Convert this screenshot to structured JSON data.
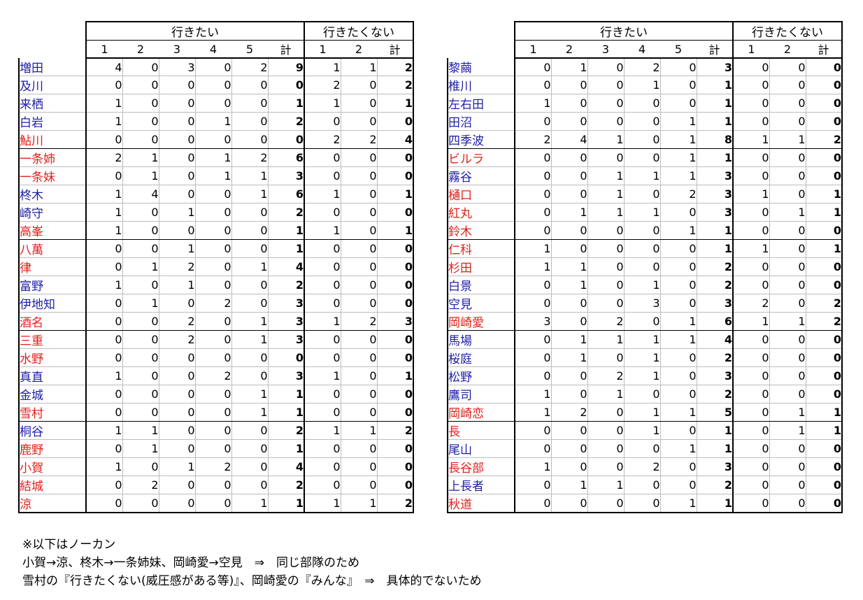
{
  "headers": {
    "want": "行きたい",
    "not_want": "行きたくない",
    "want_cols": [
      "1",
      "2",
      "3",
      "4",
      "5",
      "計"
    ],
    "not_want_cols": [
      "1",
      "2",
      "計"
    ]
  },
  "colors": {
    "red": "#e0201b",
    "blue": "#2020a8"
  },
  "left_table": [
    {
      "name": "増田",
      "color": "blue",
      "want": [
        4,
        0,
        3,
        0,
        2
      ],
      "want_total": 9,
      "not": [
        1,
        1
      ],
      "not_total": 2
    },
    {
      "name": "及川",
      "color": "blue",
      "want": [
        0,
        0,
        0,
        0,
        0
      ],
      "want_total": 0,
      "not": [
        2,
        0
      ],
      "not_total": 2
    },
    {
      "name": "来栖",
      "color": "blue",
      "want": [
        1,
        0,
        0,
        0,
        0
      ],
      "want_total": 1,
      "not": [
        1,
        0
      ],
      "not_total": 1
    },
    {
      "name": "白岩",
      "color": "blue",
      "want": [
        1,
        0,
        0,
        1,
        0
      ],
      "want_total": 2,
      "not": [
        0,
        0
      ],
      "not_total": 0
    },
    {
      "name": "鮎川",
      "color": "red",
      "want": [
        0,
        0,
        0,
        0,
        0
      ],
      "want_total": 0,
      "not": [
        2,
        2
      ],
      "not_total": 4
    },
    {
      "name": "一条姉",
      "color": "red",
      "want": [
        2,
        1,
        0,
        1,
        2
      ],
      "want_total": 6,
      "not": [
        0,
        0
      ],
      "not_total": 0
    },
    {
      "name": "一条妹",
      "color": "red",
      "want": [
        0,
        1,
        0,
        1,
        1
      ],
      "want_total": 3,
      "not": [
        0,
        0
      ],
      "not_total": 0
    },
    {
      "name": "柊木",
      "color": "blue",
      "want": [
        1,
        4,
        0,
        0,
        1
      ],
      "want_total": 6,
      "not": [
        1,
        0
      ],
      "not_total": 1
    },
    {
      "name": "崎守",
      "color": "blue",
      "want": [
        1,
        0,
        1,
        0,
        0
      ],
      "want_total": 2,
      "not": [
        0,
        0
      ],
      "not_total": 0
    },
    {
      "name": "高峯",
      "color": "red",
      "want": [
        1,
        0,
        0,
        0,
        0
      ],
      "want_total": 1,
      "not": [
        1,
        0
      ],
      "not_total": 1
    },
    {
      "name": "八萬",
      "color": "red",
      "want": [
        0,
        0,
        1,
        0,
        0
      ],
      "want_total": 1,
      "not": [
        0,
        0
      ],
      "not_total": 0
    },
    {
      "name": "律",
      "color": "red",
      "want": [
        0,
        1,
        2,
        0,
        1
      ],
      "want_total": 4,
      "not": [
        0,
        0
      ],
      "not_total": 0
    },
    {
      "name": "富野",
      "color": "blue",
      "want": [
        1,
        0,
        1,
        0,
        0
      ],
      "want_total": 2,
      "not": [
        0,
        0
      ],
      "not_total": 0
    },
    {
      "name": "伊地知",
      "color": "blue",
      "want": [
        0,
        1,
        0,
        2,
        0
      ],
      "want_total": 3,
      "not": [
        0,
        0
      ],
      "not_total": 0
    },
    {
      "name": "酒名",
      "color": "red",
      "want": [
        0,
        0,
        2,
        0,
        1
      ],
      "want_total": 3,
      "not": [
        1,
        2
      ],
      "not_total": 3
    },
    {
      "name": "三重",
      "color": "red",
      "want": [
        0,
        0,
        2,
        0,
        1
      ],
      "want_total": 3,
      "not": [
        0,
        0
      ],
      "not_total": 0
    },
    {
      "name": "水野",
      "color": "red",
      "want": [
        0,
        0,
        0,
        0,
        0
      ],
      "want_total": 0,
      "not": [
        0,
        0
      ],
      "not_total": 0
    },
    {
      "name": "真直",
      "color": "blue",
      "want": [
        1,
        0,
        0,
        2,
        0
      ],
      "want_total": 3,
      "not": [
        1,
        0
      ],
      "not_total": 1
    },
    {
      "name": "金城",
      "color": "blue",
      "want": [
        0,
        0,
        0,
        0,
        1
      ],
      "want_total": 1,
      "not": [
        0,
        0
      ],
      "not_total": 0
    },
    {
      "name": "雪村",
      "color": "red",
      "want": [
        0,
        0,
        0,
        0,
        1
      ],
      "want_total": 1,
      "not": [
        0,
        0
      ],
      "not_total": 0
    },
    {
      "name": "桐谷",
      "color": "blue",
      "want": [
        1,
        1,
        0,
        0,
        0
      ],
      "want_total": 2,
      "not": [
        1,
        1
      ],
      "not_total": 2
    },
    {
      "name": "鹿野",
      "color": "red",
      "want": [
        0,
        1,
        0,
        0,
        0
      ],
      "want_total": 1,
      "not": [
        0,
        0
      ],
      "not_total": 0
    },
    {
      "name": "小賀",
      "color": "red",
      "want": [
        1,
        0,
        1,
        2,
        0
      ],
      "want_total": 4,
      "not": [
        0,
        0
      ],
      "not_total": 0
    },
    {
      "name": "結城",
      "color": "red",
      "want": [
        0,
        2,
        0,
        0,
        0
      ],
      "want_total": 2,
      "not": [
        0,
        0
      ],
      "not_total": 0
    },
    {
      "name": "涼",
      "color": "red",
      "want": [
        0,
        0,
        0,
        0,
        1
      ],
      "want_total": 1,
      "not": [
        1,
        1
      ],
      "not_total": 2
    }
  ],
  "right_table": [
    {
      "name": "黎繭",
      "color": "blue",
      "want": [
        0,
        1,
        0,
        2,
        0
      ],
      "want_total": 3,
      "not": [
        0,
        0
      ],
      "not_total": 0
    },
    {
      "name": "椎川",
      "color": "blue",
      "want": [
        0,
        0,
        0,
        1,
        0
      ],
      "want_total": 1,
      "not": [
        0,
        0
      ],
      "not_total": 0
    },
    {
      "name": "左右田",
      "color": "blue",
      "want": [
        1,
        0,
        0,
        0,
        0
      ],
      "want_total": 1,
      "not": [
        0,
        0
      ],
      "not_total": 0
    },
    {
      "name": "田沼",
      "color": "blue",
      "want": [
        0,
        0,
        0,
        0,
        1
      ],
      "want_total": 1,
      "not": [
        0,
        0
      ],
      "not_total": 0
    },
    {
      "name": "四季波",
      "color": "blue",
      "want": [
        2,
        4,
        1,
        0,
        1
      ],
      "want_total": 8,
      "not": [
        1,
        1
      ],
      "not_total": 2
    },
    {
      "name": "ビルラ",
      "color": "red",
      "want": [
        0,
        0,
        0,
        0,
        1
      ],
      "want_total": 1,
      "not": [
        0,
        0
      ],
      "not_total": 0
    },
    {
      "name": "霧谷",
      "color": "blue",
      "want": [
        0,
        0,
        1,
        1,
        1
      ],
      "want_total": 3,
      "not": [
        0,
        0
      ],
      "not_total": 0
    },
    {
      "name": "樋口",
      "color": "red",
      "want": [
        0,
        0,
        1,
        0,
        2
      ],
      "want_total": 3,
      "not": [
        1,
        0
      ],
      "not_total": 1
    },
    {
      "name": "紅丸",
      "color": "red",
      "want": [
        0,
        1,
        1,
        1,
        0
      ],
      "want_total": 3,
      "not": [
        0,
        1
      ],
      "not_total": 1
    },
    {
      "name": "鈴木",
      "color": "red",
      "want": [
        0,
        0,
        0,
        0,
        1
      ],
      "want_total": 1,
      "not": [
        0,
        0
      ],
      "not_total": 0
    },
    {
      "name": "仁科",
      "color": "red",
      "want": [
        1,
        0,
        0,
        0,
        0
      ],
      "want_total": 1,
      "not": [
        1,
        0
      ],
      "not_total": 1
    },
    {
      "name": "杉田",
      "color": "red",
      "want": [
        1,
        1,
        0,
        0,
        0
      ],
      "want_total": 2,
      "not": [
        0,
        0
      ],
      "not_total": 0
    },
    {
      "name": "白景",
      "color": "blue",
      "want": [
        0,
        1,
        0,
        1,
        0
      ],
      "want_total": 2,
      "not": [
        0,
        0
      ],
      "not_total": 0
    },
    {
      "name": "空見",
      "color": "blue",
      "want": [
        0,
        0,
        0,
        3,
        0
      ],
      "want_total": 3,
      "not": [
        2,
        0
      ],
      "not_total": 2
    },
    {
      "name": "岡崎愛",
      "color": "red",
      "want": [
        3,
        0,
        2,
        0,
        1
      ],
      "want_total": 6,
      "not": [
        1,
        1
      ],
      "not_total": 2
    },
    {
      "name": "馬場",
      "color": "blue",
      "want": [
        0,
        1,
        1,
        1,
        1
      ],
      "want_total": 4,
      "not": [
        0,
        0
      ],
      "not_total": 0
    },
    {
      "name": "桜庭",
      "color": "blue",
      "want": [
        0,
        1,
        0,
        1,
        0
      ],
      "want_total": 2,
      "not": [
        0,
        0
      ],
      "not_total": 0
    },
    {
      "name": "松野",
      "color": "blue",
      "want": [
        0,
        0,
        2,
        1,
        0
      ],
      "want_total": 3,
      "not": [
        0,
        0
      ],
      "not_total": 0
    },
    {
      "name": "鷹司",
      "color": "blue",
      "want": [
        1,
        0,
        1,
        0,
        0
      ],
      "want_total": 2,
      "not": [
        0,
        0
      ],
      "not_total": 0
    },
    {
      "name": "岡崎恋",
      "color": "red",
      "want": [
        1,
        2,
        0,
        1,
        1
      ],
      "want_total": 5,
      "not": [
        0,
        1
      ],
      "not_total": 1
    },
    {
      "name": "長",
      "color": "red",
      "want": [
        0,
        0,
        0,
        1,
        0
      ],
      "want_total": 1,
      "not": [
        0,
        1
      ],
      "not_total": 1
    },
    {
      "name": "尾山",
      "color": "blue",
      "want": [
        0,
        0,
        0,
        0,
        1
      ],
      "want_total": 1,
      "not": [
        0,
        0
      ],
      "not_total": 0
    },
    {
      "name": "長谷部",
      "color": "red",
      "want": [
        1,
        0,
        0,
        2,
        0
      ],
      "want_total": 3,
      "not": [
        0,
        0
      ],
      "not_total": 0
    },
    {
      "name": "上長者",
      "color": "blue",
      "want": [
        0,
        1,
        1,
        0,
        0
      ],
      "want_total": 2,
      "not": [
        0,
        0
      ],
      "not_total": 0
    },
    {
      "name": "秋道",
      "color": "red",
      "want": [
        0,
        0,
        0,
        0,
        1
      ],
      "want_total": 1,
      "not": [
        0,
        0
      ],
      "not_total": 0
    }
  ],
  "notes": [
    "※以下はノーカン",
    "小賀→涼、柊木→一条姉妹、岡崎愛→空見　⇒　同じ部隊のため",
    "雪村の『行きたくない(威圧感がある等)』、岡崎愛の『みんな』　⇒　具体的でないため"
  ]
}
